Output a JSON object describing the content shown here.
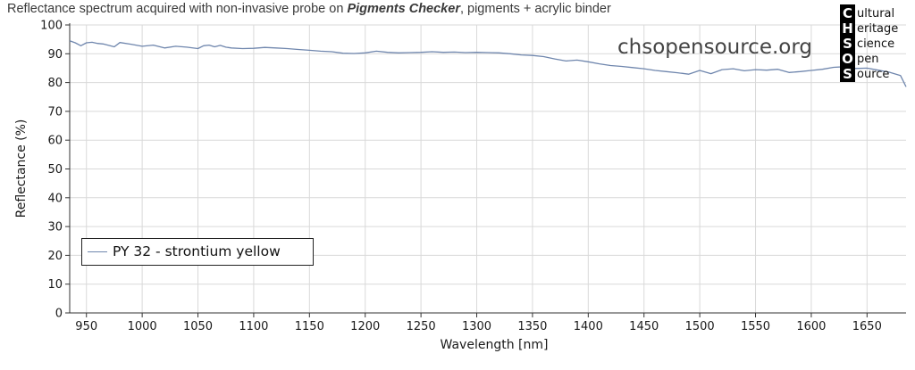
{
  "header": {
    "title_pre": "Reflectance spectrum acquired with non-invasive probe on ",
    "title_bold": "Pigments Checker",
    "title_post": ", pigments + acrylic binder"
  },
  "watermark": "chsopensource.org",
  "logo": {
    "letters": [
      "C",
      "H",
      "S",
      "O",
      "S"
    ],
    "words": [
      "ultural",
      "eritage",
      "cience",
      "pen",
      "ource"
    ]
  },
  "colors": {
    "series": "#6f86ad",
    "grid": "#d9d9d9",
    "axis": "#333333"
  },
  "chart_data": {
    "type": "line",
    "xlabel": "Wavelength [nm]",
    "ylabel": "Reflectance (%)",
    "xlim": [
      935,
      1685
    ],
    "ylim": [
      0,
      100
    ],
    "xticks": [
      950,
      1000,
      1050,
      1100,
      1150,
      1200,
      1250,
      1300,
      1350,
      1400,
      1450,
      1500,
      1550,
      1600,
      1650
    ],
    "yticks": [
      0,
      10,
      20,
      30,
      40,
      50,
      60,
      70,
      80,
      90,
      100
    ],
    "grid": true,
    "legend_position": "bottom-left",
    "series": [
      {
        "name": "PY 32 - strontium yellow",
        "x": [
          935,
          940,
          945,
          950,
          955,
          960,
          965,
          970,
          975,
          980,
          990,
          1000,
          1010,
          1020,
          1030,
          1040,
          1050,
          1055,
          1060,
          1065,
          1070,
          1075,
          1080,
          1090,
          1100,
          1110,
          1120,
          1130,
          1140,
          1150,
          1160,
          1170,
          1180,
          1190,
          1200,
          1210,
          1220,
          1230,
          1240,
          1250,
          1260,
          1270,
          1280,
          1290,
          1300,
          1310,
          1320,
          1330,
          1340,
          1350,
          1360,
          1370,
          1380,
          1390,
          1400,
          1410,
          1420,
          1430,
          1440,
          1450,
          1460,
          1470,
          1480,
          1490,
          1500,
          1510,
          1520,
          1530,
          1540,
          1550,
          1560,
          1570,
          1580,
          1590,
          1600,
          1610,
          1620,
          1630,
          1640,
          1650,
          1660,
          1670,
          1680,
          1685
        ],
        "y": [
          94.5,
          93.8,
          92.8,
          93.8,
          94.0,
          93.6,
          93.4,
          92.9,
          92.4,
          93.9,
          93.3,
          92.6,
          93.0,
          92.0,
          92.6,
          92.3,
          91.8,
          92.8,
          93.0,
          92.4,
          92.9,
          92.3,
          92.0,
          91.8,
          91.9,
          92.2,
          92.0,
          91.8,
          91.5,
          91.2,
          90.9,
          90.7,
          90.2,
          90.1,
          90.3,
          90.9,
          90.5,
          90.3,
          90.4,
          90.5,
          90.7,
          90.5,
          90.6,
          90.4,
          90.5,
          90.4,
          90.3,
          90.0,
          89.6,
          89.4,
          89.0,
          88.2,
          87.5,
          87.8,
          87.2,
          86.5,
          85.9,
          85.6,
          85.2,
          84.8,
          84.2,
          83.8,
          83.4,
          82.9,
          84.2,
          83.1,
          84.5,
          84.8,
          84.1,
          84.5,
          84.3,
          84.6,
          83.5,
          83.8,
          84.2,
          84.6,
          85.3,
          85.5,
          84.9,
          85.0,
          84.3,
          83.6,
          82.4,
          78.5
        ]
      }
    ]
  }
}
